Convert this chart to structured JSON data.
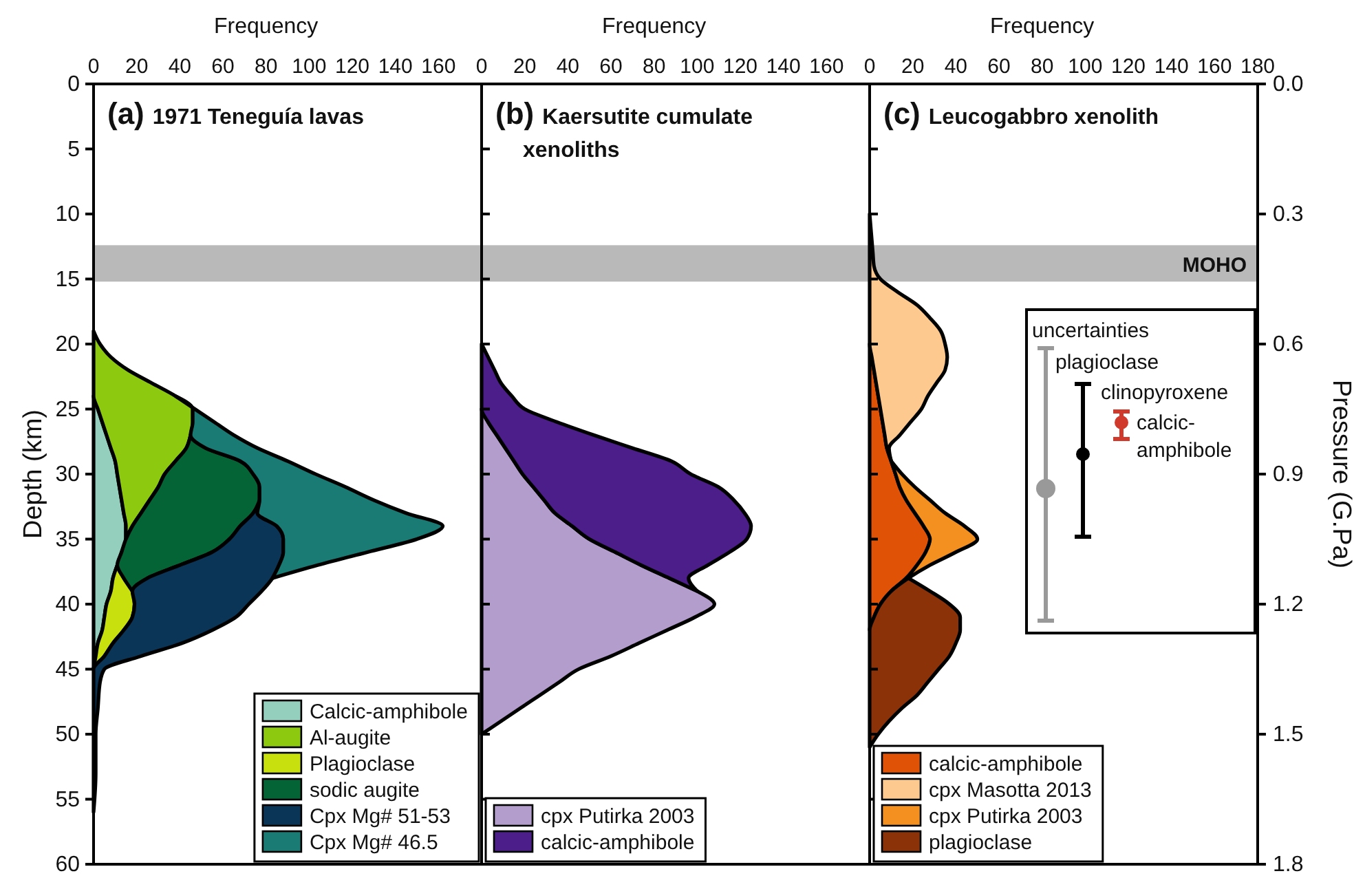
{
  "chart_data": [
    {
      "type": "area",
      "title": "(a) 1971 Teneguía lavas",
      "xlabel": "Frequency",
      "ylabel": "Depth (km)",
      "orientation": "horizontal",
      "stacked": true,
      "legend": "bottom right",
      "xlim": [
        0,
        180
      ],
      "xticks": [
        0,
        20,
        40,
        60,
        80,
        100,
        120,
        140,
        160
      ],
      "ylim": [
        60,
        0
      ],
      "yticks": [
        0,
        5,
        10,
        15,
        20,
        25,
        30,
        35,
        40,
        45,
        50,
        55,
        60
      ],
      "bands": [
        {
          "axis": "y",
          "from": 12.4,
          "to": 15.2,
          "color": "#b9b9b9"
        }
      ],
      "x": [
        19,
        20,
        21,
        22,
        23,
        24,
        25,
        26,
        27,
        28,
        29,
        30,
        31,
        32,
        33,
        34,
        35,
        36,
        37,
        38,
        39,
        40,
        41,
        42,
        43,
        44,
        45,
        46,
        48,
        50,
        53,
        56
      ],
      "series": [
        {
          "name": "Calcic-amphibole",
          "color": "#94cfbd",
          "values": [
            null,
            null,
            null,
            null,
            null,
            0,
            2,
            4,
            6,
            8,
            10,
            11,
            12,
            13,
            14,
            15,
            15,
            13,
            11,
            9,
            8,
            6,
            5,
            4,
            2,
            1,
            0,
            null,
            null,
            null,
            null,
            null
          ]
        },
        {
          "name": "Al-augite",
          "color": "#8cc90f",
          "values": [
            0,
            3,
            8,
            16,
            27,
            38,
            44,
            42,
            39,
            35,
            28,
            22,
            18,
            13,
            8,
            3,
            0,
            null,
            null,
            null,
            null,
            null,
            null,
            null,
            null,
            null,
            null,
            null,
            null,
            null,
            null,
            null
          ]
        },
        {
          "name": "Plagioclase",
          "color": "#c8e00e",
          "values": [
            null,
            null,
            null,
            null,
            null,
            null,
            null,
            null,
            null,
            null,
            null,
            null,
            null,
            null,
            null,
            null,
            null,
            null,
            0,
            5,
            10,
            13,
            13,
            10,
            7,
            4,
            0,
            null,
            null,
            null,
            null,
            null
          ]
        },
        {
          "name": "sodic augite",
          "color": "#046435",
          "values": [
            null,
            null,
            null,
            null,
            null,
            null,
            null,
            null,
            0,
            9,
            30,
            41,
            47,
            51,
            52,
            50,
            48,
            42,
            29,
            11,
            0,
            null,
            null,
            null,
            null,
            null,
            null,
            null,
            null,
            null,
            null,
            null
          ]
        },
        {
          "name": "Cpx Mg# 51-53",
          "color": "#0a3556",
          "values": [
            null,
            null,
            null,
            null,
            null,
            null,
            null,
            null,
            null,
            null,
            null,
            null,
            null,
            0,
            2,
            17,
            25,
            33,
            46,
            58,
            60,
            53,
            48,
            41,
            32,
            17,
            5,
            3,
            2,
            1,
            1,
            0
          ]
        },
        {
          "name": "Cpx Mg# 46.5",
          "color": "#1a7a74",
          "values": [
            null,
            null,
            null,
            null,
            null,
            0,
            1,
            10,
            20,
            24,
            22,
            29,
            40,
            53,
            69,
            77,
            62,
            39,
            18,
            0,
            null,
            null,
            null,
            null,
            null,
            null,
            null,
            null,
            null,
            null,
            null,
            null
          ]
        }
      ]
    },
    {
      "type": "area",
      "title": "(b) Kaersutite cumulate xenoliths",
      "xlabel": "Frequency",
      "orientation": "horizontal",
      "stacked": true,
      "legend": "bottom left",
      "tick_labels": "x",
      "xlim": [
        0,
        180
      ],
      "xticks": [
        0,
        20,
        40,
        60,
        80,
        100,
        120,
        140,
        160
      ],
      "ylim": [
        60,
        0
      ],
      "yticks": [
        0,
        5,
        10,
        15,
        20,
        25,
        30,
        35,
        40,
        45,
        50,
        55,
        60
      ],
      "bands": [
        {
          "axis": "y",
          "from": 12.4,
          "to": 15.2,
          "color": "#b9b9b9"
        }
      ],
      "x": [
        20,
        21,
        22,
        23,
        24,
        25,
        26,
        27,
        28,
        29,
        30,
        31,
        32,
        33,
        34,
        35,
        36,
        37,
        38,
        39,
        40,
        41,
        42,
        43,
        44,
        45,
        46,
        47,
        48,
        49,
        50
      ],
      "series": [
        {
          "name": "cpx Putirka 2003",
          "color": "#b39dcc",
          "values": [
            null,
            null,
            null,
            null,
            null,
            0,
            3,
            7,
            11,
            15,
            19,
            24,
            29,
            34,
            42,
            50,
            62,
            74,
            87,
            100,
            108,
            99,
            86,
            73,
            60,
            45,
            36,
            27,
            18,
            9,
            0
          ]
        },
        {
          "name": "calcic-amphibole",
          "color": "#4b1e8a",
          "values": [
            0,
            3,
            6,
            9,
            14,
            20,
            32,
            45,
            59,
            73,
            78,
            86,
            88,
            88,
            83,
            73,
            53,
            31,
            9,
            0,
            null,
            null,
            null,
            null,
            null,
            null,
            null,
            null,
            null,
            null,
            null
          ]
        }
      ]
    },
    {
      "type": "area",
      "title": "(c) Leucogabbro xenolith",
      "xlabel": "Frequency",
      "y2label": "Pressure (G.Pa)",
      "orientation": "horizontal",
      "stacked": true,
      "legend": "bottom left",
      "tick_labels": "x",
      "xlim": [
        0,
        180
      ],
      "xticks": [
        0,
        20,
        40,
        60,
        80,
        100,
        120,
        140,
        160,
        180
      ],
      "ylim": [
        60,
        0
      ],
      "yticks": [
        0,
        5,
        10,
        15,
        20,
        25,
        30,
        35,
        40,
        45,
        50,
        55,
        60
      ],
      "y2lim": [
        1.8,
        0
      ],
      "y2ticks": [
        {
          "value": 0,
          "label": "0.0"
        },
        {
          "value": 0.3,
          "label": "0.3"
        },
        {
          "value": 0.6,
          "label": "0.6"
        },
        {
          "value": 0.9,
          "label": "0.9"
        },
        {
          "value": 1.2,
          "label": "1.2"
        },
        {
          "value": 1.5,
          "label": "1.5"
        },
        {
          "value": 1.8,
          "label": "1.8"
        }
      ],
      "bands": [
        {
          "axis": "y",
          "from": 12.4,
          "to": 15.2,
          "color": "#b9b9b9",
          "label": "MOHO"
        }
      ],
      "annotations": [
        "uncertainties",
        "plagioclase",
        "clinopyroxene",
        "calcic-amphibole"
      ],
      "x": [
        10,
        11,
        12,
        13,
        14,
        15,
        16,
        17,
        18,
        19,
        20,
        21,
        22,
        23,
        24,
        25,
        26,
        27,
        28,
        29,
        30,
        31,
        32,
        33,
        34,
        35,
        36,
        37,
        38,
        39,
        40,
        41,
        42,
        43,
        44,
        45,
        46,
        47,
        48,
        49,
        50,
        51
      ],
      "series": [
        {
          "name": "calcic-amphibole",
          "color": "#e05206",
          "values": [
            null,
            null,
            null,
            null,
            null,
            null,
            null,
            null,
            null,
            null,
            0,
            1,
            2,
            3,
            4,
            5,
            6,
            7,
            8,
            10,
            12,
            14,
            17,
            21,
            25,
            28,
            26,
            22,
            17,
            10,
            5,
            2,
            0,
            null,
            null,
            null,
            null,
            null,
            null,
            null,
            null,
            null
          ]
        },
        {
          "name": "cpx Masotta 2013",
          "color": "#fdc98e",
          "values": [
            0,
            0.5,
            1,
            1.5,
            2,
            5,
            13,
            22,
            28,
            33,
            35,
            35,
            33,
            28,
            23,
            19,
            13,
            7,
            1,
            0,
            null,
            null,
            null,
            null,
            null,
            null,
            null,
            null,
            null,
            null,
            null,
            null,
            null,
            null,
            null,
            null,
            null,
            null,
            null,
            null,
            null,
            null
          ]
        },
        {
          "name": "cpx Putirka 2003",
          "color": "#f39020",
          "values": [
            null,
            null,
            null,
            null,
            null,
            null,
            null,
            null,
            null,
            null,
            null,
            null,
            null,
            null,
            null,
            null,
            null,
            null,
            null,
            0,
            3,
            7,
            11,
            14,
            19,
            22,
            14,
            6,
            1,
            0,
            null,
            null,
            null,
            null,
            null,
            null,
            null,
            null,
            null,
            null,
            null,
            null
          ]
        },
        {
          "name": "plagioclase",
          "color": "#8b3208",
          "values": [
            null,
            null,
            null,
            null,
            null,
            null,
            null,
            null,
            null,
            null,
            null,
            null,
            null,
            null,
            null,
            null,
            null,
            null,
            null,
            null,
            null,
            null,
            null,
            null,
            null,
            null,
            null,
            null,
            0,
            18,
            32,
            40,
            42,
            40,
            37,
            32,
            27,
            22,
            15,
            9,
            4,
            0
          ]
        }
      ]
    }
  ]
}
